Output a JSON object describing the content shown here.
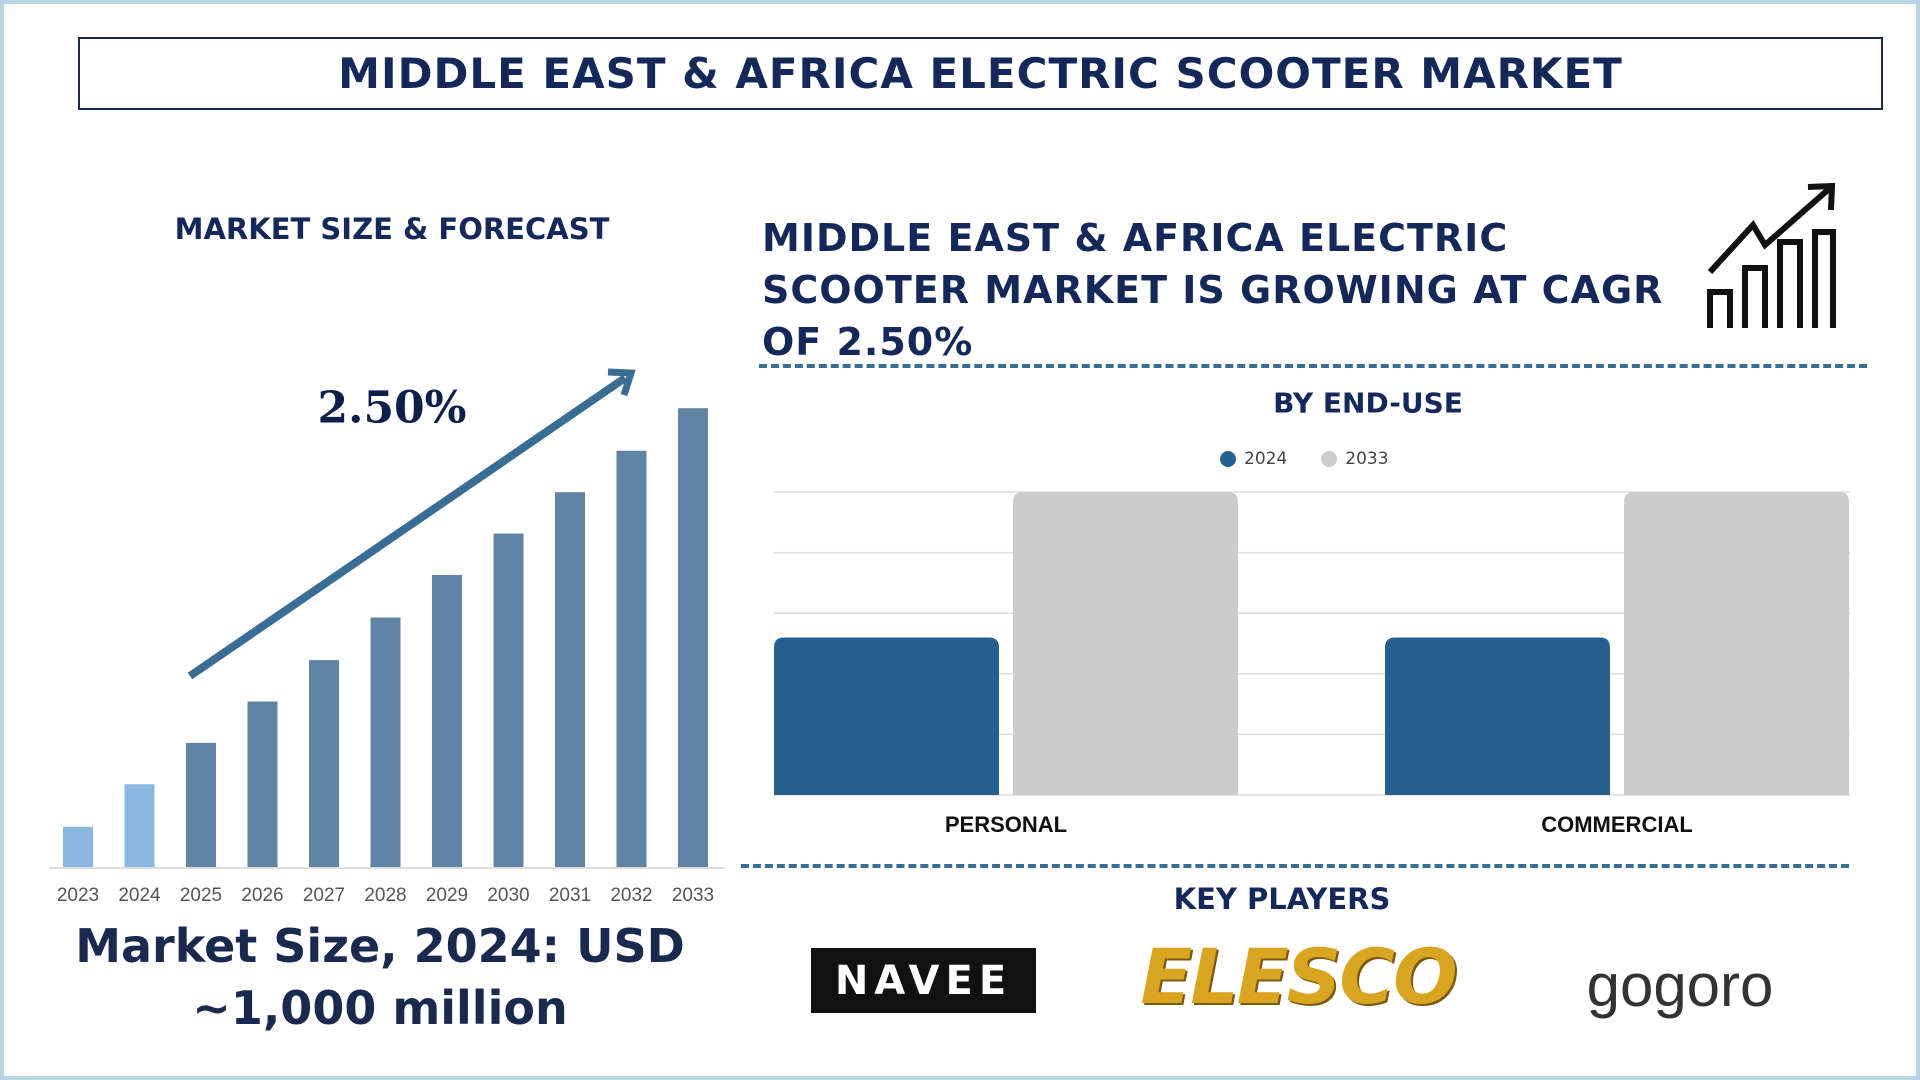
{
  "title": "MIDDLE EAST & AFRICA ELECTRIC SCOOTER MARKET",
  "left_panel": {
    "heading": "MARKET SIZE & FORECAST",
    "cagr_label": "2.50%",
    "market_size_line1": "Market Size, 2024: USD",
    "market_size_line2": "~1,000 million"
  },
  "right_panel": {
    "headline_lines": [
      "MIDDLE EAST & AFRICA ELECTRIC",
      "SCOOTER MARKET IS GROWING AT CAGR",
      "OF 2.50%"
    ],
    "icon": "growth-chart-arrow-icon",
    "end_use_heading": "BY END-USE",
    "key_players_heading": "KEY PLAYERS",
    "key_players": [
      "NAVEE",
      "ELESCO",
      "gogoro"
    ]
  },
  "colors": {
    "historic": "#8ab8e0",
    "forecast": "#5f84a4",
    "series_2024": "#26608e",
    "series_2033": "#cccccc",
    "text": "#14295a"
  },
  "chart_data": [
    {
      "type": "bar",
      "title": "MARKET SIZE & FORECAST",
      "categories": [
        "2023",
        "2024",
        "2025",
        "2026",
        "2027",
        "2028",
        "2029",
        "2030",
        "2031",
        "2032",
        "2033"
      ],
      "values": [
        1.0,
        2.06,
        3.09,
        4.12,
        5.15,
        6.21,
        7.27,
        8.3,
        9.33,
        10.36,
        11.42
      ],
      "ylim": [
        0,
        11.5
      ],
      "annotation": "2.50%",
      "grid": false
    },
    {
      "type": "bar",
      "title": "BY END-USE",
      "categories": [
        "PERSONAL",
        "COMMERCIAL"
      ],
      "series": [
        {
          "name": "2024",
          "values": [
            2.6,
            2.6
          ]
        },
        {
          "name": "2033",
          "values": [
            5.0,
            5.0
          ]
        }
      ],
      "ylim": [
        0,
        5
      ],
      "grid": true,
      "legend": "top-center"
    }
  ]
}
